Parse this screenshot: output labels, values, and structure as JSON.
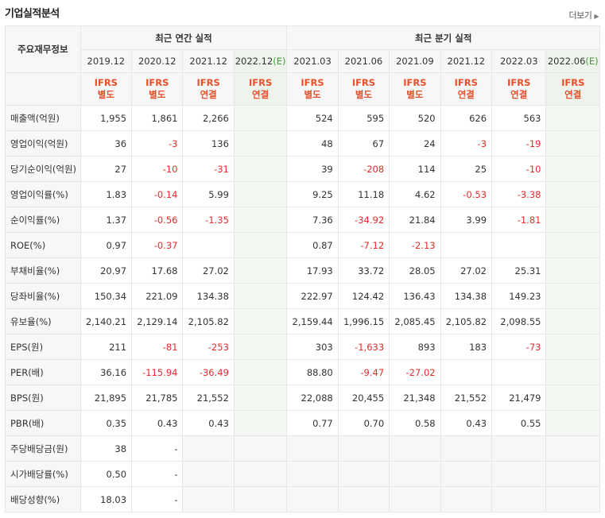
{
  "title": "기업실적분석",
  "more_label": "더보기",
  "header": {
    "row_label": "주요재무정보",
    "annual_group": "최근 연간 실적",
    "quarter_group": "최근 분기 실적",
    "periods": [
      "2019.12",
      "2020.12",
      "2021.12",
      "2022.12(E)",
      "2021.03",
      "2021.06",
      "2021.09",
      "2021.12",
      "2022.03",
      "2022.06(E)"
    ],
    "ifrs_top": [
      "IFRS",
      "IFRS",
      "IFRS",
      "IFRS",
      "IFRS",
      "IFRS",
      "IFRS",
      "IFRS",
      "IFRS",
      "IFRS"
    ],
    "ifrs_bottom": [
      "별도",
      "별도",
      "연결",
      "연결",
      "별도",
      "별도",
      "별도",
      "연결",
      "연결",
      "연결"
    ]
  },
  "rows": [
    {
      "label": "매출액(억원)",
      "values": [
        "1,955",
        "1,861",
        "2,266",
        "",
        "524",
        "595",
        "520",
        "626",
        "563",
        ""
      ]
    },
    {
      "label": "영업이익(억원)",
      "values": [
        "36",
        "-3",
        "136",
        "",
        "48",
        "67",
        "24",
        "-3",
        "-19",
        ""
      ]
    },
    {
      "label": "당기순이익(억원)",
      "values": [
        "27",
        "-10",
        "-31",
        "",
        "39",
        "-208",
        "114",
        "25",
        "-10",
        ""
      ]
    },
    {
      "label": "영업이익률(%)",
      "values": [
        "1.83",
        "-0.14",
        "5.99",
        "",
        "9.25",
        "11.18",
        "4.62",
        "-0.53",
        "-3.38",
        ""
      ]
    },
    {
      "label": "순이익률(%)",
      "values": [
        "1.37",
        "-0.56",
        "-1.35",
        "",
        "7.36",
        "-34.92",
        "21.84",
        "3.99",
        "-1.81",
        ""
      ]
    },
    {
      "label": "ROE(%)",
      "values": [
        "0.97",
        "-0.37",
        "",
        "",
        "0.87",
        "-7.12",
        "-2.13",
        "",
        "",
        ""
      ]
    },
    {
      "label": "부채비율(%)",
      "values": [
        "20.97",
        "17.68",
        "27.02",
        "",
        "17.93",
        "33.72",
        "28.05",
        "27.02",
        "25.31",
        ""
      ]
    },
    {
      "label": "당좌비율(%)",
      "values": [
        "150.34",
        "221.09",
        "134.38",
        "",
        "222.97",
        "124.42",
        "136.43",
        "134.38",
        "149.23",
        ""
      ]
    },
    {
      "label": "유보율(%)",
      "values": [
        "2,140.21",
        "2,129.14",
        "2,105.82",
        "",
        "2,159.44",
        "1,996.15",
        "2,085.45",
        "2,105.82",
        "2,098.55",
        ""
      ]
    },
    {
      "label": "EPS(원)",
      "values": [
        "211",
        "-81",
        "-253",
        "",
        "303",
        "-1,633",
        "893",
        "183",
        "-73",
        ""
      ]
    },
    {
      "label": "PER(배)",
      "values": [
        "36.16",
        "-115.94",
        "-36.49",
        "",
        "88.80",
        "-9.47",
        "-27.02",
        "",
        "",
        ""
      ]
    },
    {
      "label": "BPS(원)",
      "values": [
        "21,895",
        "21,785",
        "21,552",
        "",
        "22,088",
        "20,455",
        "21,348",
        "21,552",
        "21,479",
        ""
      ]
    },
    {
      "label": "PBR(배)",
      "values": [
        "0.35",
        "0.43",
        "0.43",
        "",
        "0.77",
        "0.70",
        "0.58",
        "0.43",
        "0.55",
        ""
      ]
    },
    {
      "label": "주당배당금(원)",
      "values": [
        "38",
        "-",
        "",
        "",
        "",
        "",
        "",
        "",
        "",
        ""
      ]
    },
    {
      "label": "시가배당률(%)",
      "values": [
        "0.50",
        "-",
        "",
        "",
        "",
        "",
        "",
        "",
        "",
        ""
      ]
    },
    {
      "label": "배당성향(%)",
      "values": [
        "18.03",
        "-",
        "",
        "",
        "",
        "",
        "",
        "",
        "",
        ""
      ]
    }
  ],
  "colors": {
    "negative": "#e82a2a",
    "ifrs": "#e8502b",
    "estimate": "#4a9a3e"
  }
}
